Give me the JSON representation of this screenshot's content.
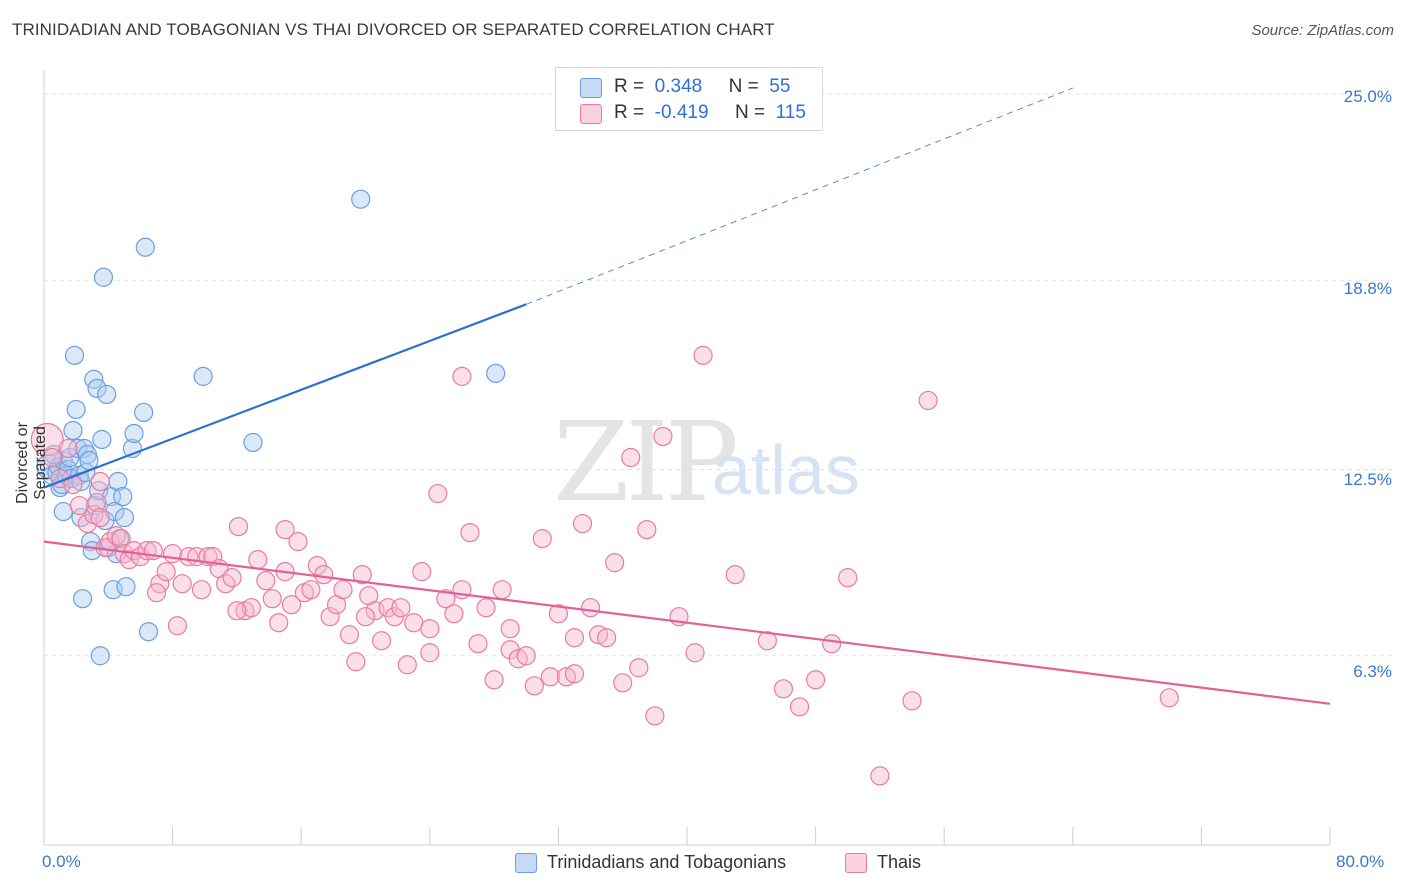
{
  "title": "TRINIDADIAN AND TOBAGONIAN VS THAI DIVORCED OR SEPARATED CORRELATION CHART",
  "source": "Source: ZipAtlas.com",
  "watermark": {
    "zip": "ZIP",
    "atlas": "atlas"
  },
  "legend": {
    "rows": [
      {
        "r_label": "R =",
        "r_value": "0.348",
        "n_label": "N =",
        "n_value": "55",
        "color": "#aecbf0"
      },
      {
        "r_label": "R =",
        "r_value": "-0.419",
        "n_label": "N =",
        "n_value": "115",
        "color": "#f7b8cc"
      }
    ]
  },
  "bottom_legend": [
    {
      "label": "Trinidadians and Tobagonians",
      "color": "#aecbf0"
    },
    {
      "label": "Thais",
      "color": "#f7b8cc"
    }
  ],
  "chart_data": {
    "type": "scatter",
    "title": "TRINIDADIAN AND TOBAGONIAN VS THAI DIVORCED OR SEPARATED CORRELATION CHART",
    "xlabel": "",
    "ylabel": "Divorced or Separated",
    "xlim": [
      0,
      80
    ],
    "ylim": [
      0,
      25.8
    ],
    "x_tick_labels": [
      "0.0%",
      "80.0%"
    ],
    "y_ticks": [
      6.3,
      12.5,
      18.8,
      25.0
    ],
    "y_tick_labels": [
      "6.3%",
      "12.5%",
      "18.8%",
      "25.0%"
    ],
    "grid": true,
    "series": [
      {
        "name": "Trinidadians and Tobagonians",
        "color": "#6a9fe0",
        "fill": "#aecbf0",
        "trend": {
          "x": [
            0,
            30
          ],
          "y": [
            11.9,
            18.0
          ],
          "dashed_to": [
            64,
            25.2
          ],
          "color": "#2a6fd0"
        },
        "points": [
          [
            0.3,
            12.6
          ],
          [
            0.5,
            12.3
          ],
          [
            0.8,
            12.4
          ],
          [
            0.9,
            12.6
          ],
          [
            1.0,
            11.9
          ],
          [
            1.1,
            12.0
          ],
          [
            1.2,
            12.8
          ],
          [
            1.2,
            11.1
          ],
          [
            1.4,
            12.3
          ],
          [
            1.5,
            12.5
          ],
          [
            1.6,
            12.9
          ],
          [
            1.7,
            12.2
          ],
          [
            1.8,
            13.8
          ],
          [
            1.9,
            16.3
          ],
          [
            2.0,
            14.5
          ],
          [
            2.1,
            13.2
          ],
          [
            2.2,
            12.3
          ],
          [
            2.3,
            12.1
          ],
          [
            2.3,
            10.9
          ],
          [
            2.4,
            8.2
          ],
          [
            2.5,
            13.2
          ],
          [
            2.6,
            12.4
          ],
          [
            2.7,
            13.0
          ],
          [
            2.8,
            12.8
          ],
          [
            2.9,
            10.1
          ],
          [
            3.0,
            9.8
          ],
          [
            3.1,
            15.5
          ],
          [
            3.2,
            11.3
          ],
          [
            3.3,
            15.2
          ],
          [
            3.4,
            11.8
          ],
          [
            3.5,
            6.3
          ],
          [
            3.6,
            13.5
          ],
          [
            3.7,
            18.9
          ],
          [
            3.8,
            10.8
          ],
          [
            3.9,
            15.0
          ],
          [
            4.0,
            9.9
          ],
          [
            4.2,
            11.6
          ],
          [
            4.3,
            8.5
          ],
          [
            4.4,
            11.1
          ],
          [
            4.5,
            9.7
          ],
          [
            4.6,
            12.1
          ],
          [
            4.7,
            10.2
          ],
          [
            4.9,
            11.6
          ],
          [
            5.0,
            10.9
          ],
          [
            5.1,
            8.6
          ],
          [
            5.5,
            13.2
          ],
          [
            5.6,
            13.7
          ],
          [
            6.2,
            14.4
          ],
          [
            6.3,
            19.9
          ],
          [
            6.5,
            7.1
          ],
          [
            9.9,
            15.6
          ],
          [
            13.0,
            13.4
          ],
          [
            19.7,
            21.5
          ],
          [
            28.1,
            15.7
          ],
          [
            0.6,
            13.0
          ]
        ]
      },
      {
        "name": "Thais",
        "color": "#ea7ba0",
        "fill": "#f7b8cc",
        "trend": {
          "x": [
            0,
            80
          ],
          "y": [
            10.1,
            4.7
          ],
          "color": "#e0609a"
        },
        "points": [
          [
            0.2,
            13.5
          ],
          [
            0.5,
            12.9
          ],
          [
            1.0,
            12.2
          ],
          [
            1.5,
            13.2
          ],
          [
            1.8,
            12.0
          ],
          [
            2.2,
            11.3
          ],
          [
            2.7,
            10.7
          ],
          [
            3.1,
            11.0
          ],
          [
            3.3,
            11.4
          ],
          [
            3.5,
            10.9
          ],
          [
            3.8,
            9.9
          ],
          [
            4.1,
            10.1
          ],
          [
            4.5,
            10.3
          ],
          [
            4.8,
            10.2
          ],
          [
            5.0,
            9.7
          ],
          [
            5.3,
            9.5
          ],
          [
            5.6,
            9.8
          ],
          [
            6.0,
            9.6
          ],
          [
            6.4,
            9.8
          ],
          [
            6.8,
            9.8
          ],
          [
            7.2,
            8.7
          ],
          [
            7.6,
            9.1
          ],
          [
            8.0,
            9.7
          ],
          [
            8.3,
            7.3
          ],
          [
            8.6,
            8.7
          ],
          [
            9.0,
            9.6
          ],
          [
            9.5,
            9.6
          ],
          [
            9.8,
            8.5
          ],
          [
            10.2,
            9.6
          ],
          [
            10.5,
            9.6
          ],
          [
            10.9,
            9.2
          ],
          [
            11.3,
            8.7
          ],
          [
            11.7,
            8.9
          ],
          [
            12.1,
            10.6
          ],
          [
            12.5,
            7.8
          ],
          [
            12.9,
            7.9
          ],
          [
            13.3,
            9.5
          ],
          [
            13.8,
            8.8
          ],
          [
            14.2,
            8.2
          ],
          [
            14.6,
            7.4
          ],
          [
            15.0,
            9.1
          ],
          [
            15.4,
            8.0
          ],
          [
            15.8,
            10.1
          ],
          [
            16.2,
            8.4
          ],
          [
            16.6,
            8.5
          ],
          [
            17.0,
            9.3
          ],
          [
            17.4,
            9.0
          ],
          [
            17.8,
            7.6
          ],
          [
            18.2,
            8.0
          ],
          [
            18.6,
            8.5
          ],
          [
            19.0,
            7.0
          ],
          [
            19.4,
            6.1
          ],
          [
            19.8,
            9.0
          ],
          [
            20.2,
            8.3
          ],
          [
            20.6,
            7.8
          ],
          [
            21.0,
            6.8
          ],
          [
            21.4,
            7.9
          ],
          [
            21.8,
            7.6
          ],
          [
            22.2,
            7.9
          ],
          [
            22.6,
            6.0
          ],
          [
            23.0,
            7.4
          ],
          [
            23.5,
            9.1
          ],
          [
            24.0,
            7.2
          ],
          [
            24.5,
            11.7
          ],
          [
            25.0,
            8.2
          ],
          [
            25.5,
            7.7
          ],
          [
            26.0,
            8.5
          ],
          [
            26.5,
            10.4
          ],
          [
            27.0,
            6.7
          ],
          [
            27.5,
            7.9
          ],
          [
            28.0,
            5.5
          ],
          [
            28.5,
            8.5
          ],
          [
            29.0,
            6.5
          ],
          [
            29.5,
            6.2
          ],
          [
            30.0,
            6.3
          ],
          [
            30.5,
            5.3
          ],
          [
            31.0,
            10.2
          ],
          [
            31.5,
            5.6
          ],
          [
            32.0,
            7.7
          ],
          [
            32.5,
            5.6
          ],
          [
            33.0,
            6.9
          ],
          [
            33.5,
            10.7
          ],
          [
            34.0,
            7.9
          ],
          [
            34.5,
            7.0
          ],
          [
            35.0,
            6.9
          ],
          [
            35.5,
            9.4
          ],
          [
            36.0,
            5.4
          ],
          [
            36.5,
            12.9
          ],
          [
            37.0,
            5.9
          ],
          [
            37.5,
            10.5
          ],
          [
            38.0,
            4.3
          ],
          [
            38.5,
            13.6
          ],
          [
            39.5,
            7.6
          ],
          [
            40.5,
            6.4
          ],
          [
            41.0,
            16.3
          ],
          [
            43.0,
            9.0
          ],
          [
            45.0,
            6.8
          ],
          [
            46.0,
            5.2
          ],
          [
            47.0,
            4.6
          ],
          [
            48.0,
            5.5
          ],
          [
            49.0,
            6.7
          ],
          [
            50.0,
            8.9
          ],
          [
            52.0,
            2.3
          ],
          [
            54.0,
            4.8
          ],
          [
            55.0,
            14.8
          ],
          [
            70.0,
            4.9
          ],
          [
            26.0,
            15.6
          ],
          [
            15.0,
            10.5
          ],
          [
            3.5,
            12.1
          ],
          [
            7.0,
            8.4
          ],
          [
            12.0,
            7.8
          ],
          [
            20.0,
            7.6
          ],
          [
            24.0,
            6.4
          ],
          [
            29.0,
            7.2
          ],
          [
            33.0,
            5.7
          ]
        ]
      }
    ]
  }
}
